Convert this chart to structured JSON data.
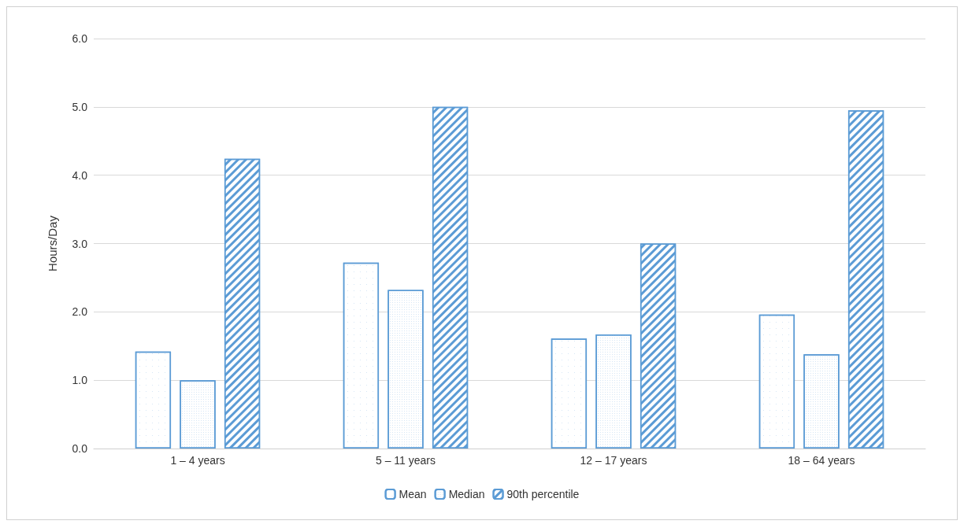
{
  "chart_data": {
    "type": "bar",
    "ylabel": "Hours/Day",
    "categories": [
      "1 – 4 years",
      "5 – 11 years",
      "12 – 17 years",
      "18 – 64 years"
    ],
    "series": [
      {
        "name": "Mean",
        "color": "#5b9bd5",
        "values": [
          1.42,
          2.72,
          1.61,
          1.96
        ]
      },
      {
        "name": "Median",
        "color": "#5b9bd5",
        "values": [
          1.0,
          2.32,
          1.67,
          1.38
        ]
      },
      {
        "name": "90th percentile",
        "color": "#5b9bd5",
        "values": [
          4.24,
          5.0,
          3.0,
          4.95
        ]
      }
    ],
    "ylim": [
      0,
      6
    ],
    "yticks": [
      {
        "value": 0,
        "label": "0.0"
      },
      {
        "value": 1,
        "label": "1.0"
      },
      {
        "value": 2,
        "label": "2.0"
      },
      {
        "value": 3,
        "label": "3.0"
      },
      {
        "value": 4,
        "label": "4.0"
      },
      {
        "value": 5,
        "label": "5.0"
      },
      {
        "value": 6,
        "label": "6.0"
      }
    ],
    "grid": "y",
    "legend": "bottom"
  }
}
